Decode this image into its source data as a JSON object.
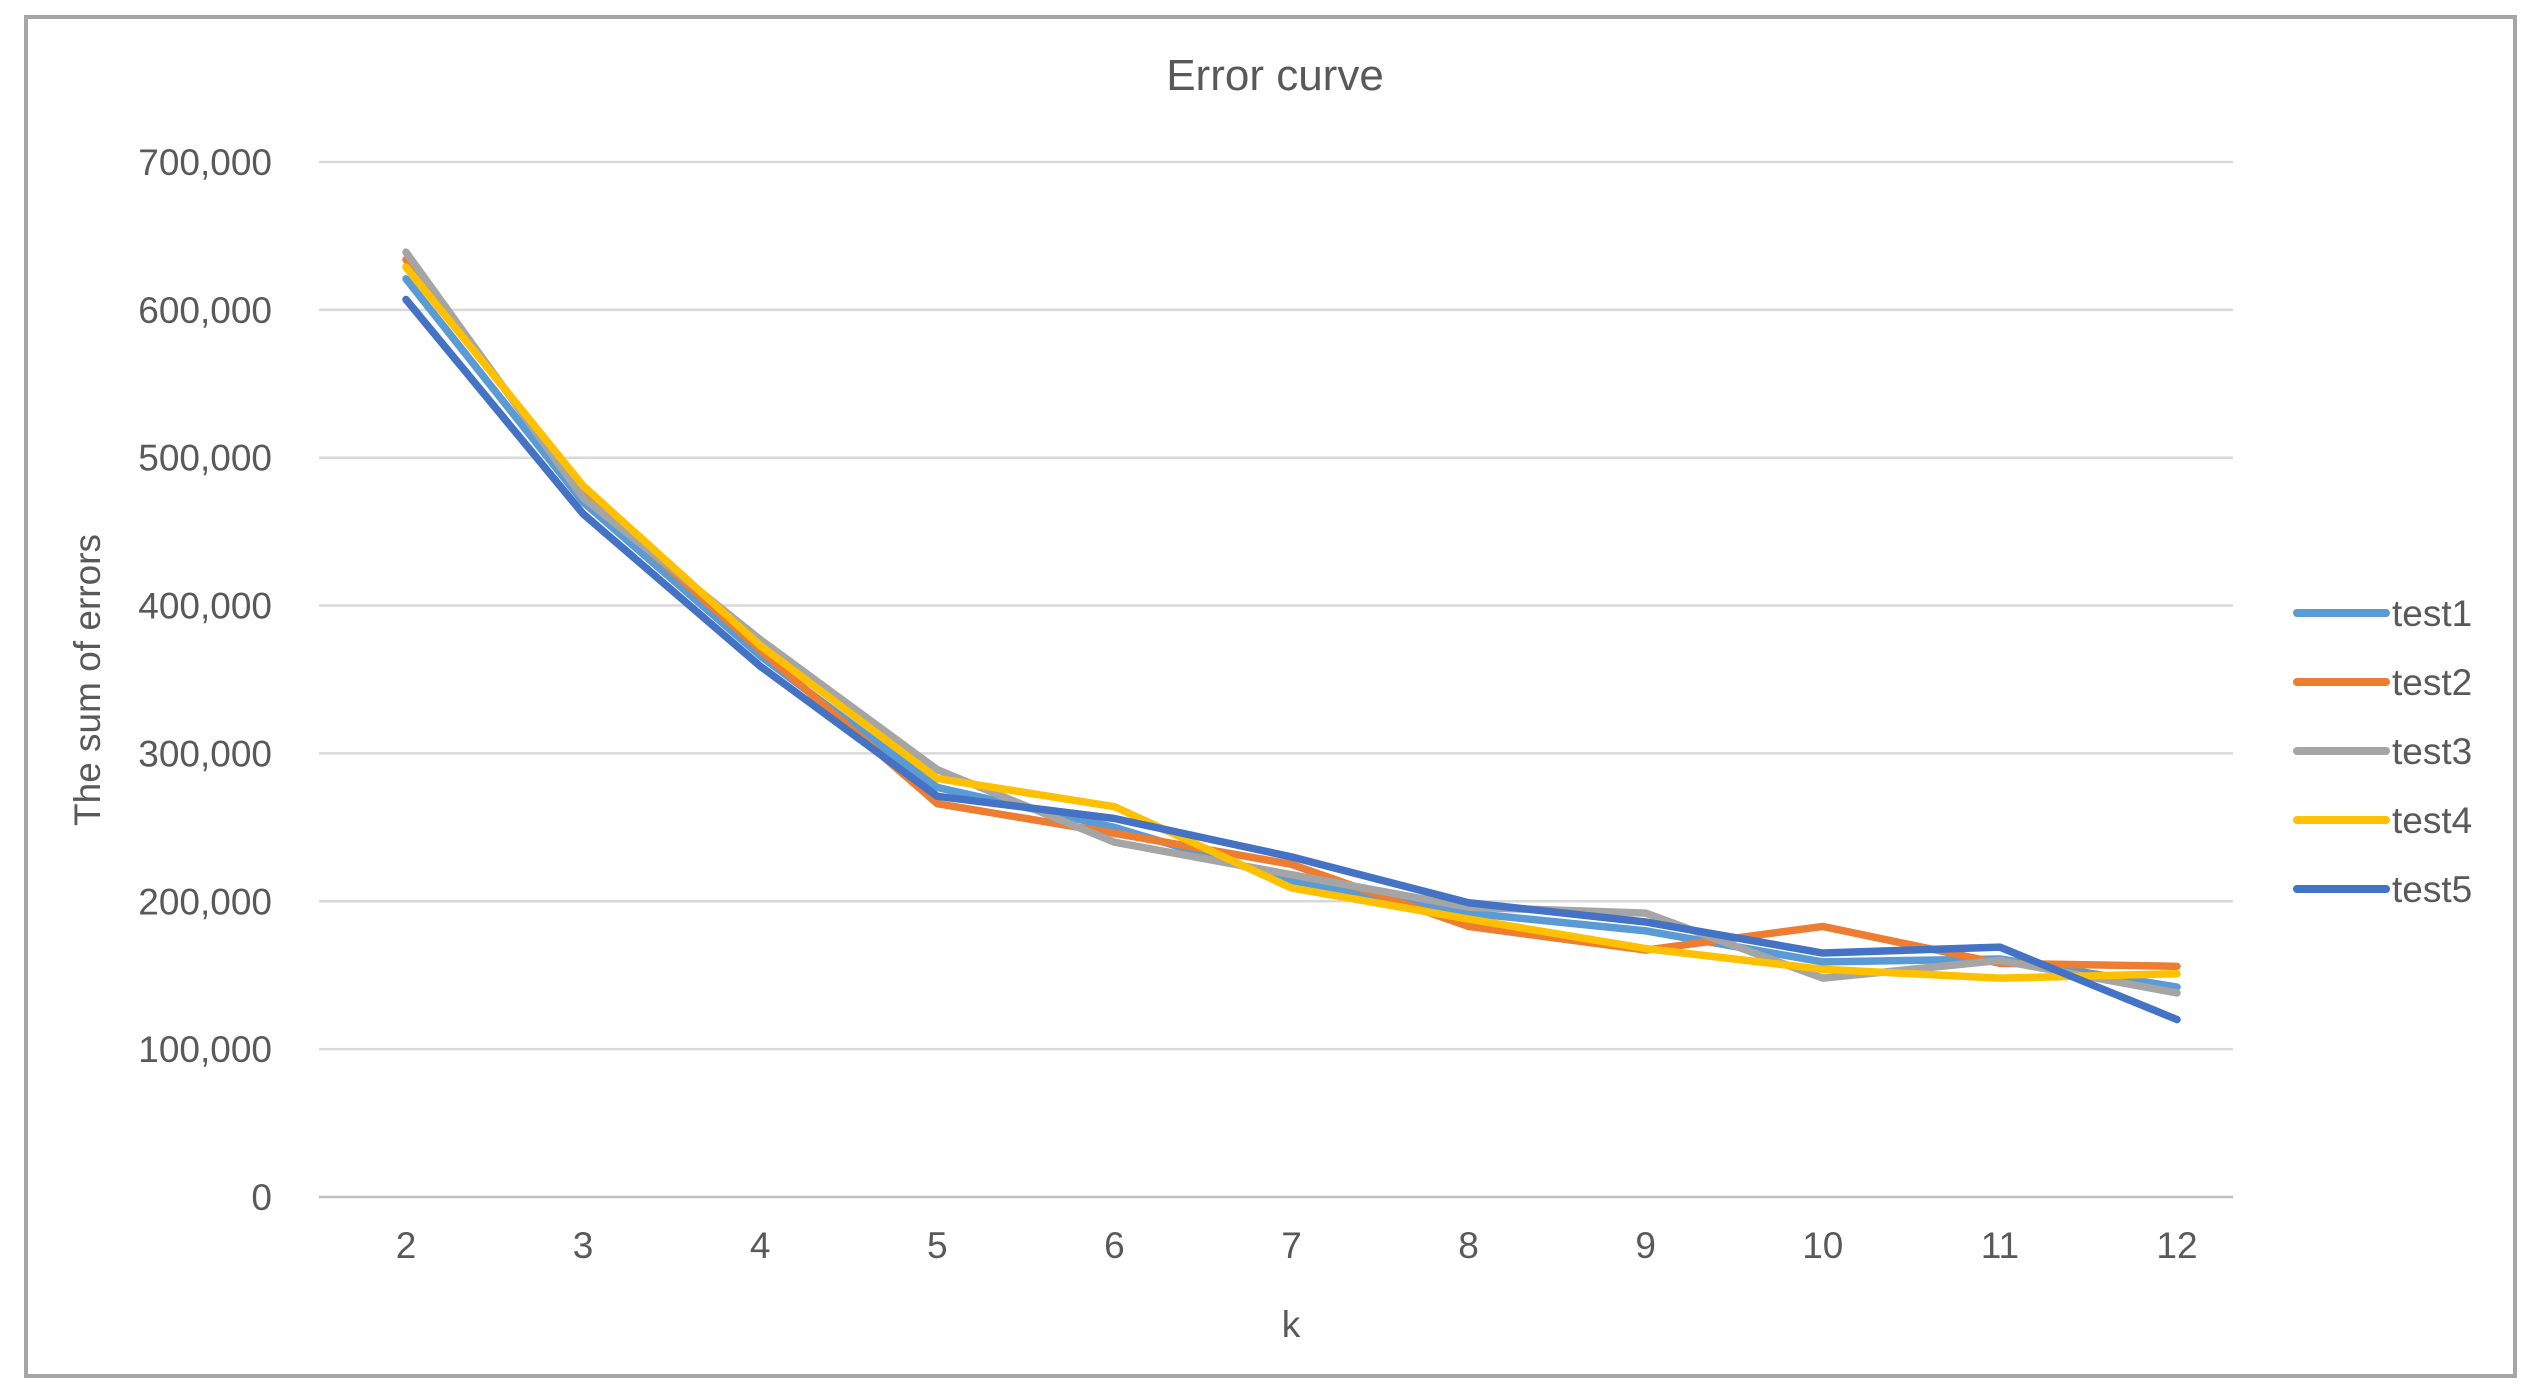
{
  "figure": {
    "border_color": "#a6a6a6",
    "background_color": "#ffffff",
    "gridline_color": "#d9d9d9",
    "axisline_color": "#bfbfbf",
    "text_color": "#595959"
  },
  "chart_data": {
    "type": "line",
    "title": "Error curve",
    "xlabel": "k",
    "ylabel": "The sum of errors",
    "grid": true,
    "legend_position": "right",
    "x": [
      2,
      3,
      4,
      5,
      6,
      7,
      8,
      9,
      10,
      11,
      12
    ],
    "x_tick_labels": [
      "2",
      "3",
      "4",
      "5",
      "6",
      "7",
      "8",
      "9",
      "10",
      "11",
      "12"
    ],
    "ylim": [
      0,
      700000
    ],
    "y_tick_step": 100000,
    "y_tick_labels": [
      "0",
      "100,000",
      "200,000",
      "300,000",
      "400,000",
      "500,000",
      "600,000",
      "700,000"
    ],
    "series": [
      {
        "name": "test1",
        "color": "#5B9BD5",
        "values": [
          621000,
          470000,
          366000,
          277000,
          250000,
          214000,
          192000,
          180000,
          159000,
          161000,
          142000
        ]
      },
      {
        "name": "test2",
        "color": "#ED7D31",
        "values": [
          634000,
          477000,
          370000,
          266000,
          246000,
          225000,
          183000,
          167000,
          183000,
          158000,
          156000
        ]
      },
      {
        "name": "test3",
        "color": "#A5A5A5",
        "values": [
          639000,
          473000,
          377000,
          289000,
          240000,
          218000,
          196000,
          192000,
          148000,
          160000,
          138000
        ]
      },
      {
        "name": "test4",
        "color": "#FFC000",
        "values": [
          629000,
          481000,
          373000,
          283000,
          264000,
          209000,
          188000,
          168000,
          154000,
          148000,
          151000
        ]
      },
      {
        "name": "test5",
        "color": "#4472C4",
        "values": [
          607000,
          462000,
          359000,
          271000,
          256000,
          230000,
          199000,
          186000,
          165000,
          169000,
          120000
        ]
      }
    ]
  }
}
